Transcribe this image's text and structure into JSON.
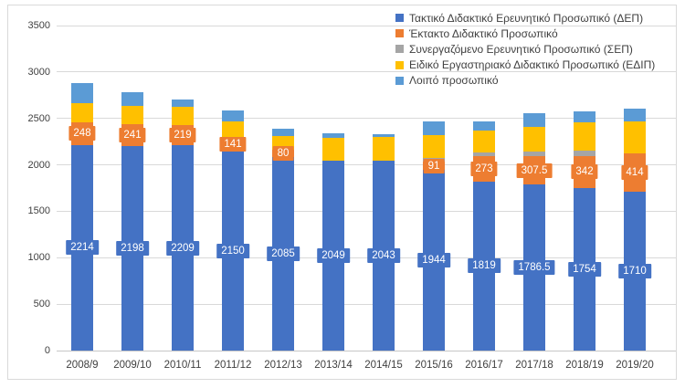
{
  "chart_data": {
    "type": "bar",
    "stacked": true,
    "title": "",
    "xlabel": "",
    "ylabel": "",
    "ylim": [
      0,
      3500
    ],
    "y_ticks": [
      0,
      500,
      1000,
      1500,
      2000,
      2500,
      3000,
      3500
    ],
    "grid": true,
    "legend_position": "top-right",
    "categories": [
      "2008/9",
      "2009/10",
      "2010/11",
      "2011/12",
      "2012/13",
      "2013/14",
      "2014/15",
      "2015/16",
      "2016/17",
      "2017/18",
      "2018/19",
      "2019/20"
    ],
    "series": [
      {
        "name": "Τακτικό Διδακτικό Ερευνητικό Προσωπικό (ΔΕΠ)",
        "color": "#4472C4",
        "show_labels": true,
        "values": [
          2214,
          2198,
          2209,
          2150,
          2085,
          2049,
          2043,
          1944,
          1819,
          1786.5,
          1754,
          1710
        ]
      },
      {
        "name": "Έκτακτο Διδακτικό Προσωπικό",
        "color": "#ED7D31",
        "show_labels": true,
        "values": [
          248,
          241,
          219,
          141,
          80,
          0,
          0,
          91,
          273,
          307.5,
          342,
          414
        ]
      },
      {
        "name": "Συνεργαζόμενο Ερευνητικό Προσωπικό (ΣΕΠ)",
        "color": "#A5A5A5",
        "show_labels": false,
        "values": [
          0,
          0,
          0,
          0,
          0,
          0,
          0,
          35,
          40,
          50,
          55,
          0
        ]
      },
      {
        "name": "Ειδικό Εργαστηριακό Διδακτικό Προσωπικό (ΕΔΙΠ)",
        "color": "#FFC000",
        "show_labels": false,
        "values": [
          200,
          200,
          200,
          180,
          145,
          240,
          255,
          250,
          235,
          260,
          310,
          340
        ]
      },
      {
        "name": "Λοιπό προσωπικό",
        "color": "#5B9BD5",
        "show_labels": false,
        "values": [
          220,
          140,
          80,
          110,
          80,
          55,
          35,
          145,
          100,
          150,
          115,
          140
        ]
      }
    ],
    "label_text_color": "#FFFFFF",
    "gridline_color": "#D9D9D9"
  }
}
